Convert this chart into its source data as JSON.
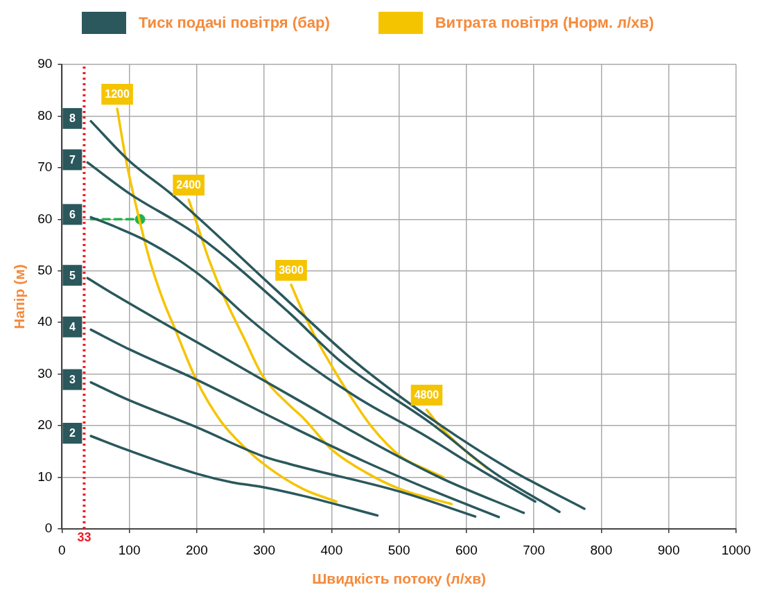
{
  "chart_data": {
    "type": "line",
    "xlabel": "Швидкість потоку (л/хв)",
    "ylabel": "Напір (м)",
    "marker": "none",
    "grid": true,
    "annotations": [
      "Тиск подачі повітря (бар)",
      "Витрата повітря (Норм. л/хв)"
    ],
    "xlim": [
      0,
      1000
    ],
    "xticks": [
      0,
      100,
      200,
      300,
      400,
      500,
      600,
      700,
      800,
      900,
      1000
    ],
    "ylim": [
      0,
      90
    ],
    "yticks": [
      0,
      10,
      20,
      30,
      40,
      50,
      60,
      70,
      80,
      90
    ],
    "series": [
      {
        "name": "8",
        "color": "#2a585c",
        "x": [
          43,
          100,
          164,
          316,
          434,
          557,
          665,
          775
        ],
        "values": [
          79,
          71.3,
          64.7,
          46.5,
          32.5,
          20.5,
          11.5,
          3.9
        ]
      },
      {
        "name": "7",
        "color": "#2a585c",
        "x": [
          38,
          100,
          200,
          337,
          413,
          547,
          640,
          738
        ],
        "values": [
          71,
          65,
          57,
          41.9,
          32.5,
          20.5,
          11,
          3.3
        ]
      },
      {
        "name": "6",
        "color": "#2a585c",
        "x": [
          43,
          80,
          124,
          180,
          216,
          280,
          358,
          450,
          533,
          620,
          702
        ],
        "values": [
          60.4,
          58.5,
          55.9,
          51.5,
          48,
          40.5,
          32.5,
          24.5,
          18.5,
          11.5,
          5.3
        ]
      },
      {
        "name": "5",
        "color": "#2a585c",
        "x": [
          38,
          78,
          200,
          358,
          450,
          560,
          685
        ],
        "values": [
          48.6,
          45.4,
          36.2,
          24.4,
          17.5,
          10,
          3.1
        ]
      },
      {
        "name": "4",
        "color": "#2a585c",
        "x": [
          43,
          100,
          200,
          337,
          450,
          548,
          648
        ],
        "values": [
          38.6,
          34.8,
          28.9,
          20,
          13,
          7.5,
          2.3
        ]
      },
      {
        "name": "3",
        "color": "#2a585c",
        "x": [
          43,
          95,
          200,
          298,
          337,
          502,
          613
        ],
        "values": [
          28.4,
          25.2,
          19.7,
          14.1,
          12.6,
          7.2,
          2.4
        ]
      },
      {
        "name": "2",
        "color": "#2a585c",
        "x": [
          43,
          95,
          200,
          253,
          298,
          358,
          468
        ],
        "values": [
          18,
          15.4,
          10.7,
          9,
          8.1,
          6.4,
          2.6
        ]
      },
      {
        "name": "1200",
        "color": "#f5c400",
        "x": [
          82,
          95,
          114,
          130,
          151,
          166,
          200,
          235,
          271,
          305,
          358,
          407
        ],
        "values": [
          81.4,
          71.5,
          60.4,
          52.2,
          44,
          39.3,
          28.7,
          21,
          15.8,
          12,
          7.7,
          5.3
        ]
      },
      {
        "name": "2400",
        "color": "#f5c400",
        "x": [
          188,
          197,
          218,
          239,
          270,
          298,
          337,
          358,
          400,
          450,
          502,
          578
        ],
        "values": [
          63.8,
          60.4,
          52.2,
          45.4,
          37,
          29.6,
          24,
          21.5,
          15.4,
          11,
          7.7,
          4.8
        ]
      },
      {
        "name": "3600",
        "color": "#f5c400",
        "x": [
          340,
          358,
          379,
          400,
          424,
          460,
          502,
          539,
          566
        ],
        "values": [
          47.3,
          41.9,
          36.4,
          31.6,
          26.5,
          19.7,
          14.1,
          11.6,
          10
        ]
      },
      {
        "name": "4800",
        "color": "#f5c400",
        "x": [
          541,
          560,
          596,
          631
        ],
        "values": [
          23.1,
          20,
          15.4,
          11.7
        ]
      },
      {
        "color": "#22b14c",
        "line_style": "dashed",
        "x": [
          43,
          116
        ],
        "values": [
          60,
          60
        ]
      },
      {
        "type": "scatter",
        "marker": "circle",
        "color": "#22b14c",
        "x": [
          116
        ],
        "values": [
          60
        ]
      }
    ],
    "ref_lines": [
      {
        "axis": "x",
        "value": 33,
        "label": "33",
        "color": "#ee1c25",
        "line_style": "dotted"
      }
    ]
  }
}
